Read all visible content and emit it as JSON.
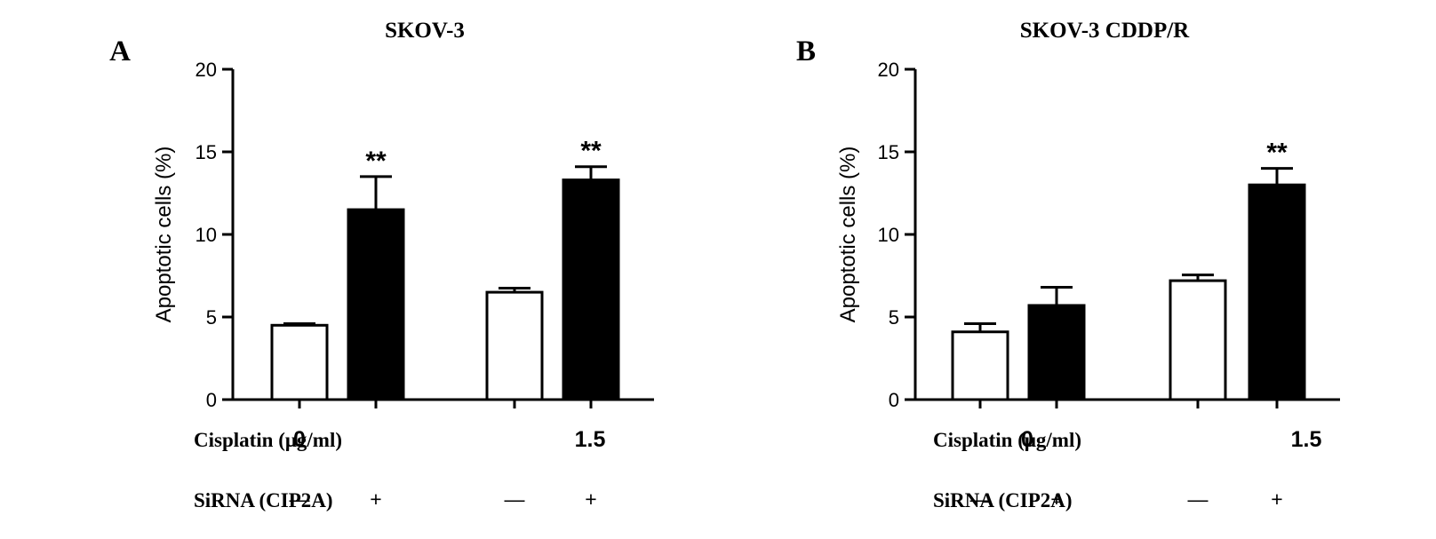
{
  "chart_data": [
    {
      "type": "bar",
      "panel_label": "A",
      "title": "SKOV-3",
      "ylabel": "Apoptotic cells (%)",
      "ylim": [
        0,
        20
      ],
      "yticks": [
        "0",
        "5",
        "10",
        "15",
        "20"
      ],
      "row1_label": "Cisplatin (μg/ml)",
      "row2_label": "SiRNA (CIP2A)",
      "groups": [
        "0",
        "1.5"
      ],
      "bars": [
        {
          "cisplatin": "0",
          "sirna": "—",
          "value": 4.5,
          "error": 0.1,
          "fill": "#ffffff",
          "sig": ""
        },
        {
          "cisplatin": "0",
          "sirna": "+",
          "value": 11.5,
          "error": 2.0,
          "fill": "#000000",
          "sig": "**"
        },
        {
          "cisplatin": "1.5",
          "sirna": "—",
          "value": 6.5,
          "error": 0.25,
          "fill": "#ffffff",
          "sig": ""
        },
        {
          "cisplatin": "1.5",
          "sirna": "+",
          "value": 13.3,
          "error": 0.8,
          "fill": "#000000",
          "sig": "**"
        }
      ]
    },
    {
      "type": "bar",
      "panel_label": "B",
      "title": "SKOV-3 CDDP/R",
      "ylabel": "Apoptotic cells (%)",
      "ylim": [
        0,
        20
      ],
      "yticks": [
        "0",
        "5",
        "10",
        "15",
        "20"
      ],
      "row1_label": "Cisplatin (μg/ml)",
      "row2_label": "SiRNA (CIP2A)",
      "groups": [
        "0",
        "1.5"
      ],
      "bars": [
        {
          "cisplatin": "0",
          "sirna": "—",
          "value": 4.1,
          "error": 0.5,
          "fill": "#ffffff",
          "sig": ""
        },
        {
          "cisplatin": "0",
          "sirna": "+",
          "value": 5.7,
          "error": 1.1,
          "fill": "#000000",
          "sig": ""
        },
        {
          "cisplatin": "1.5",
          "sirna": "—",
          "value": 7.2,
          "error": 0.35,
          "fill": "#ffffff",
          "sig": ""
        },
        {
          "cisplatin": "1.5",
          "sirna": "+",
          "value": 13.0,
          "error": 1.0,
          "fill": "#000000",
          "sig": "**"
        }
      ]
    }
  ]
}
